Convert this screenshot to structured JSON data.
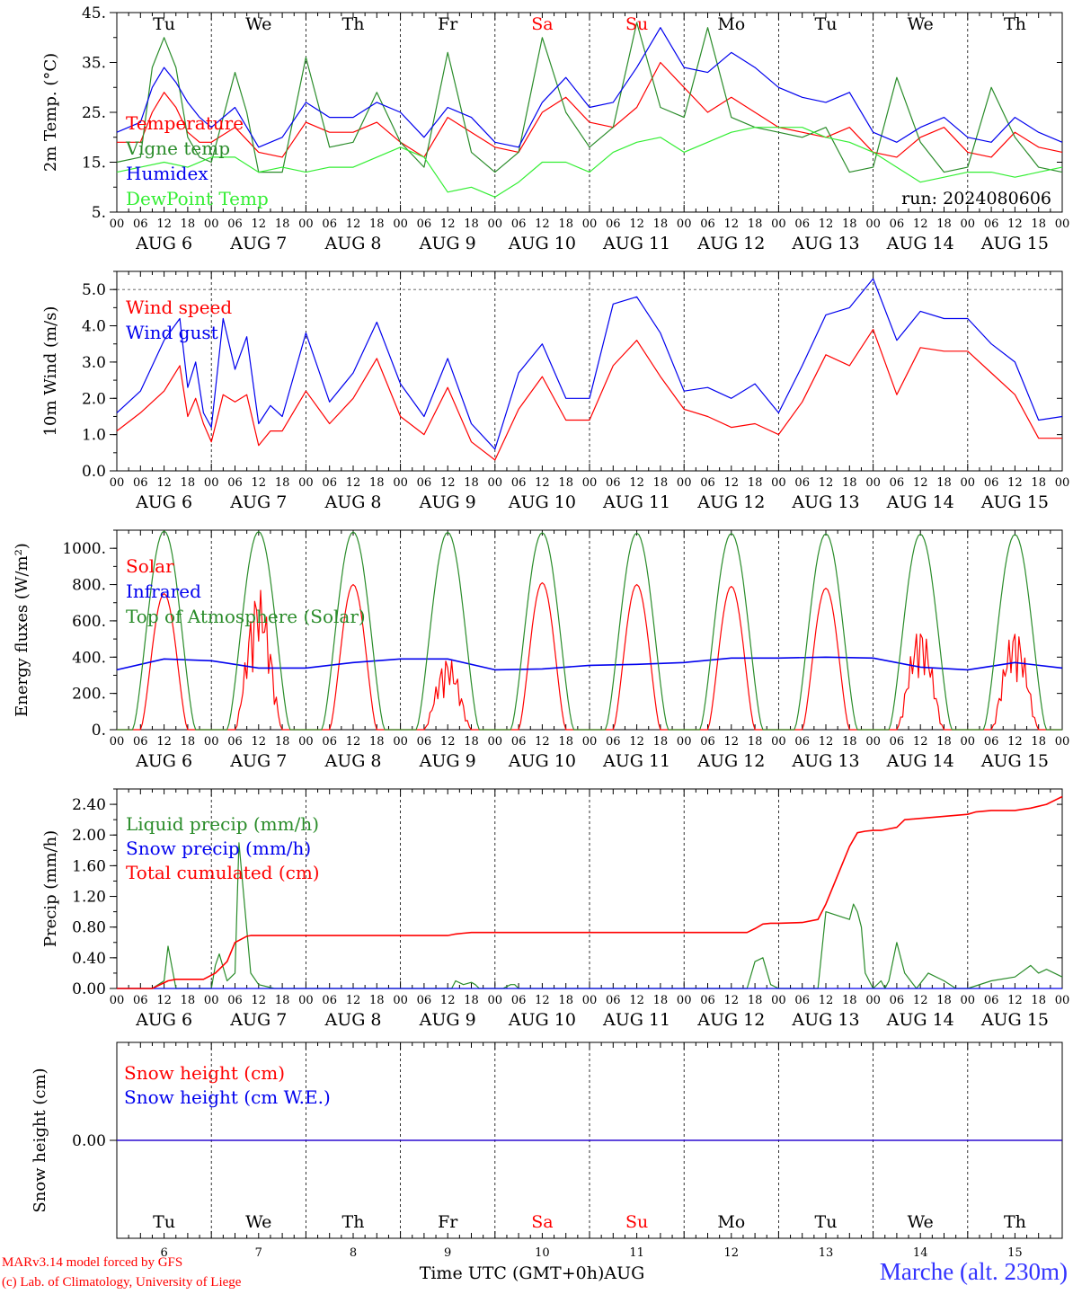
{
  "chart_data": [
    {
      "type": "line",
      "panel": "temperature",
      "ylabel": "2m Temp. (°C)",
      "ylim": [
        5,
        45
      ],
      "yticks": [
        "45.",
        "35.",
        "25.",
        "15.",
        "5."
      ],
      "annotation": "run: 2024080606",
      "series": [
        {
          "name": "Temperature",
          "color": "#ff0000",
          "x": [
            0,
            6,
            9,
            12,
            15,
            18,
            21,
            24,
            30,
            36,
            42,
            48,
            54,
            60,
            66,
            72,
            78,
            84,
            90,
            96,
            102,
            108,
            114,
            120,
            126,
            132,
            138,
            144,
            150,
            156,
            162,
            168,
            174,
            180,
            186,
            192,
            198,
            204,
            210,
            216,
            222,
            228,
            234,
            240
          ],
          "values": [
            19,
            19,
            25,
            29,
            26,
            21,
            19,
            19,
            22,
            17,
            16,
            23,
            21,
            21,
            23,
            19,
            16,
            24,
            21,
            18,
            17,
            25,
            28,
            23,
            22,
            26,
            35,
            30,
            25,
            28,
            25,
            22,
            21,
            20,
            22,
            17,
            16,
            20,
            22,
            17,
            16,
            21,
            18,
            17
          ]
        },
        {
          "name": "Vigne temp",
          "color": "#2a8c2a",
          "x": [
            0,
            6,
            9,
            12,
            15,
            18,
            21,
            24,
            30,
            33,
            36,
            42,
            48,
            54,
            60,
            66,
            72,
            78,
            84,
            90,
            96,
            102,
            108,
            114,
            120,
            126,
            132,
            138,
            144,
            150,
            156,
            162,
            168,
            174,
            180,
            186,
            192,
            198,
            204,
            210,
            216,
            222,
            228,
            234,
            240
          ],
          "values": [
            15,
            16,
            34,
            40,
            34,
            20,
            16,
            15,
            33,
            25,
            13,
            13,
            36,
            18,
            19,
            29,
            19,
            14,
            37,
            17,
            13,
            17,
            40,
            25,
            18,
            22,
            43,
            26,
            24,
            42,
            24,
            22,
            21,
            20,
            22,
            13,
            14,
            32,
            19,
            13,
            14,
            30,
            20,
            14,
            13
          ]
        },
        {
          "name": "Humidex",
          "color": "#0000ee",
          "x": [
            0,
            6,
            9,
            12,
            15,
            18,
            21,
            24,
            30,
            36,
            42,
            48,
            54,
            60,
            66,
            72,
            78,
            84,
            90,
            96,
            102,
            108,
            114,
            120,
            126,
            132,
            138,
            144,
            150,
            156,
            162,
            168,
            174,
            180,
            186,
            192,
            198,
            204,
            210,
            216,
            222,
            228,
            234,
            240
          ],
          "values": [
            21,
            23,
            30,
            34,
            31,
            27,
            24,
            22,
            26,
            18,
            20,
            27,
            24,
            24,
            27,
            25,
            20,
            26,
            24,
            19,
            18,
            27,
            32,
            26,
            27,
            34,
            42,
            34,
            33,
            37,
            34,
            30,
            28,
            27,
            29,
            21,
            19,
            22,
            24,
            20,
            19,
            24,
            21,
            19
          ]
        },
        {
          "name": "DewPoint Temp",
          "color": "#33ee33",
          "x": [
            0,
            6,
            12,
            18,
            24,
            30,
            36,
            42,
            48,
            54,
            60,
            66,
            72,
            78,
            84,
            90,
            96,
            102,
            108,
            114,
            120,
            126,
            132,
            138,
            144,
            150,
            156,
            162,
            168,
            174,
            180,
            186,
            192,
            198,
            204,
            210,
            216,
            222,
            228,
            234,
            240
          ],
          "values": [
            13,
            14,
            15,
            14,
            16,
            16,
            13,
            14,
            13,
            14,
            14,
            16,
            18,
            16,
            9,
            10,
            8,
            11,
            15,
            15,
            13,
            17,
            19,
            20,
            17,
            19,
            21,
            22,
            22,
            22,
            20,
            19,
            17,
            14,
            11,
            12,
            13,
            13,
            12,
            13,
            14
          ]
        }
      ]
    },
    {
      "type": "line",
      "panel": "wind",
      "ylabel": "10m Wind (m/s)",
      "ylim": [
        0,
        5.5
      ],
      "yticks": [
        "5.0",
        "4.0",
        "3.0",
        "2.0",
        "1.0",
        "0.0"
      ],
      "series": [
        {
          "name": "Wind speed",
          "color": "#ff0000",
          "x": [
            0,
            6,
            12,
            16,
            18,
            20,
            22,
            24,
            27,
            30,
            33,
            36,
            39,
            42,
            48,
            54,
            60,
            66,
            72,
            78,
            84,
            90,
            96,
            102,
            108,
            114,
            120,
            126,
            132,
            138,
            144,
            150,
            156,
            162,
            168,
            174,
            180,
            186,
            192,
            198,
            204,
            210,
            216,
            222,
            228,
            234,
            240
          ],
          "values": [
            1.1,
            1.6,
            2.2,
            2.9,
            1.5,
            2.0,
            1.3,
            0.8,
            2.1,
            1.9,
            2.1,
            0.7,
            1.1,
            1.1,
            2.2,
            1.3,
            2.0,
            3.1,
            1.5,
            1.0,
            2.3,
            0.8,
            0.3,
            1.7,
            2.6,
            1.4,
            1.4,
            2.9,
            3.6,
            2.6,
            1.7,
            1.5,
            1.2,
            1.3,
            1.0,
            1.9,
            3.2,
            2.9,
            3.9,
            2.1,
            3.4,
            3.3,
            3.3,
            2.7,
            2.1,
            0.9,
            0.9
          ]
        },
        {
          "name": "Wind gust",
          "color": "#0000ee",
          "x": [
            0,
            6,
            12,
            16,
            18,
            20,
            22,
            24,
            27,
            30,
            33,
            36,
            39,
            42,
            48,
            54,
            60,
            66,
            72,
            78,
            84,
            90,
            96,
            102,
            108,
            114,
            120,
            126,
            132,
            138,
            144,
            150,
            156,
            162,
            168,
            174,
            180,
            186,
            192,
            198,
            204,
            210,
            216,
            222,
            228,
            234,
            240
          ],
          "values": [
            1.6,
            2.2,
            3.6,
            4.2,
            2.3,
            3.0,
            1.6,
            1.2,
            4.2,
            2.8,
            3.7,
            1.3,
            1.8,
            1.5,
            3.8,
            1.9,
            2.7,
            4.1,
            2.4,
            1.5,
            3.1,
            1.3,
            0.6,
            2.7,
            3.5,
            2.0,
            2.0,
            4.6,
            4.8,
            3.8,
            2.2,
            2.3,
            2.0,
            2.4,
            1.6,
            2.9,
            4.3,
            4.5,
            5.3,
            3.6,
            4.4,
            4.2,
            4.2,
            3.5,
            3.0,
            1.4,
            1.5
          ]
        }
      ]
    },
    {
      "type": "line",
      "panel": "energy",
      "ylabel": "Energy fluxes (W/m²)",
      "ylim": [
        0,
        1100
      ],
      "yticks": [
        "1000.",
        "800.",
        "600.",
        "400.",
        "200.",
        "0."
      ],
      "series": [
        {
          "name": "Solar",
          "color": "#ff0000",
          "peaks": [
            750,
            780,
            800,
            400,
            810,
            800,
            790,
            780,
            570,
            560
          ],
          "cloudy_days": [
            1,
            3,
            8,
            9
          ]
        },
        {
          "name": "Infrared",
          "color": "#0000ee",
          "x": [
            0,
            12,
            24,
            36,
            48,
            60,
            72,
            84,
            96,
            108,
            120,
            132,
            144,
            156,
            168,
            180,
            192,
            204,
            216,
            228,
            240
          ],
          "values": [
            330,
            390,
            380,
            340,
            340,
            370,
            390,
            390,
            330,
            335,
            355,
            360,
            370,
            395,
            395,
            400,
            395,
            345,
            330,
            370,
            340
          ]
        },
        {
          "name": "Top of Atmosphere (Solar)",
          "color": "#2a8c2a",
          "peaks": [
            1095,
            1092,
            1090,
            1088,
            1086,
            1084,
            1082,
            1080,
            1078,
            1076
          ]
        }
      ]
    },
    {
      "type": "line",
      "panel": "precip",
      "ylabel": "Precip (mm/h)",
      "ylim": [
        0,
        2.6
      ],
      "yticks": [
        "2.40",
        "2.00",
        "1.60",
        "1.20",
        "0.80",
        "0.40",
        "0.00"
      ],
      "series": [
        {
          "name": "Liquid precip (mm/h)",
          "color": "#2a8c2a",
          "x": [
            0,
            9,
            12,
            13,
            15,
            24,
            25,
            26,
            28,
            30,
            31,
            34,
            36,
            40,
            85,
            86,
            88,
            90,
            91,
            92,
            96,
            98,
            100,
            101,
            102,
            120,
            160,
            162,
            164,
            166,
            168,
            178,
            179,
            180,
            186,
            187,
            188,
            189,
            190,
            192,
            194,
            195,
            196,
            198,
            200,
            203,
            206,
            210,
            213,
            216,
            222,
            228,
            232,
            234,
            236,
            240
          ],
          "values": [
            0,
            0,
            0.1,
            0.55,
            0,
            0,
            0.3,
            0.45,
            0.1,
            0.2,
            1.9,
            0.2,
            0.05,
            0,
            0,
            0.1,
            0.05,
            0.08,
            0.05,
            0,
            0,
            0,
            0.05,
            0.05,
            0,
            0,
            0,
            0.35,
            0.4,
            0.05,
            0,
            0,
            0.5,
            1.0,
            0.9,
            1.1,
            1.0,
            0.8,
            0.2,
            0,
            0.1,
            0,
            0.1,
            0.6,
            0.2,
            0,
            0.2,
            0.1,
            0,
            0,
            0.1,
            0.15,
            0.3,
            0.2,
            0.25,
            0.15
          ]
        },
        {
          "name": "Snow precip (mm/h)",
          "color": "#0000ee",
          "x": [
            0,
            240
          ],
          "values": [
            0,
            0
          ]
        },
        {
          "name": "Total cumulated (cm)",
          "color": "#ff0000",
          "x": [
            0,
            9,
            13,
            15,
            18,
            22,
            25,
            28,
            30,
            33,
            34,
            36,
            84,
            86,
            88,
            90,
            92,
            94,
            96,
            100,
            160,
            162,
            164,
            166,
            168,
            174,
            178,
            180,
            184,
            186,
            188,
            190,
            192,
            194,
            196,
            198,
            200,
            216,
            218,
            222,
            228,
            232,
            236,
            240
          ],
          "values": [
            0,
            0,
            0.1,
            0.12,
            0.12,
            0.12,
            0.2,
            0.35,
            0.6,
            0.68,
            0.69,
            0.69,
            0.69,
            0.71,
            0.72,
            0.73,
            0.73,
            0.73,
            0.73,
            0.73,
            0.73,
            0.78,
            0.84,
            0.85,
            0.85,
            0.86,
            0.9,
            1.1,
            1.6,
            1.85,
            2.03,
            2.05,
            2.06,
            2.06,
            2.08,
            2.1,
            2.2,
            2.27,
            2.3,
            2.32,
            2.32,
            2.35,
            2.4,
            2.5
          ]
        }
      ]
    },
    {
      "type": "line",
      "panel": "snow",
      "ylabel": "Snow height (cm)",
      "ylim": [
        -1,
        1
      ],
      "yticks": [
        "0.00"
      ],
      "series": [
        {
          "name": "Snow height (cm)",
          "color": "#ff0000",
          "x": [
            0,
            240
          ],
          "values": [
            0,
            0
          ]
        },
        {
          "name": "Snow height (cm W.E.)",
          "color": "#0000ee",
          "x": [
            0,
            240
          ],
          "values": [
            0,
            0
          ]
        }
      ]
    }
  ],
  "axis": {
    "hour_ticks": [
      "00",
      "06",
      "12",
      "18",
      "00",
      "06",
      "12",
      "18",
      "00",
      "06",
      "12",
      "18",
      "00",
      "06",
      "12",
      "18",
      "00",
      "06",
      "12",
      "18",
      "00",
      "06",
      "12",
      "18",
      "00",
      "06",
      "12",
      "18",
      "00",
      "06",
      "12",
      "18",
      "00",
      "06",
      "12",
      "18",
      "00",
      "06",
      "12",
      "18",
      "00"
    ],
    "date_labels": [
      "AUG  6",
      "AUG  7",
      "AUG  8",
      "AUG  9",
      "AUG 10",
      "AUG 11",
      "AUG 12",
      "AUG 13",
      "AUG 14",
      "AUG 15"
    ],
    "weekdays": [
      "Tu",
      "We",
      "Th",
      "Fr",
      "Sa",
      "Su",
      "Mo",
      "Tu",
      "We",
      "Th"
    ],
    "weekend_color": "#ff0000",
    "weekday_color": "#000000",
    "day_numbers": [
      "6",
      "7",
      "8",
      "9",
      "10",
      "11",
      "12",
      "13",
      "14",
      "15"
    ],
    "xlabel": "Time UTC (GMT+0h)AUG"
  },
  "footer": {
    "credit_line1": "MARv3.14 model forced by GFS",
    "credit_line2": "(c) Lab. of Climatology, University of Liege",
    "station": "Marche (alt. 230m)"
  }
}
